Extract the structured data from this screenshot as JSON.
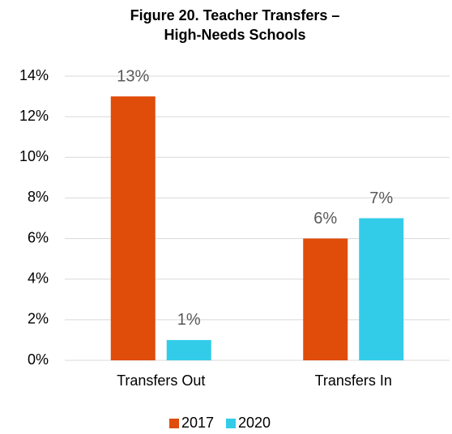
{
  "chart_data": {
    "type": "bar",
    "title": [
      "Figure 20. Teacher Transfers –",
      "High-Needs Schools"
    ],
    "categories": [
      "Transfers Out",
      "Transfers In"
    ],
    "series": [
      {
        "name": "2017",
        "color": "#e04c0a",
        "values": [
          13,
          6
        ],
        "value_labels": [
          "13%",
          "6%"
        ]
      },
      {
        "name": "2020",
        "color": "#33cce8",
        "values": [
          1,
          7
        ],
        "value_labels": [
          "1%",
          "7%"
        ]
      }
    ],
    "ylim": [
      0,
      14
    ],
    "yticks": [
      {
        "value": 0,
        "label": "0%"
      },
      {
        "value": 2,
        "label": "2%"
      },
      {
        "value": 4,
        "label": "4%"
      },
      {
        "value": 6,
        "label": "6%"
      },
      {
        "value": 8,
        "label": "8%"
      },
      {
        "value": 10,
        "label": "10%"
      },
      {
        "value": 12,
        "label": "12%"
      },
      {
        "value": 14,
        "label": "14%"
      }
    ],
    "grid": true,
    "legend": "bottom"
  }
}
